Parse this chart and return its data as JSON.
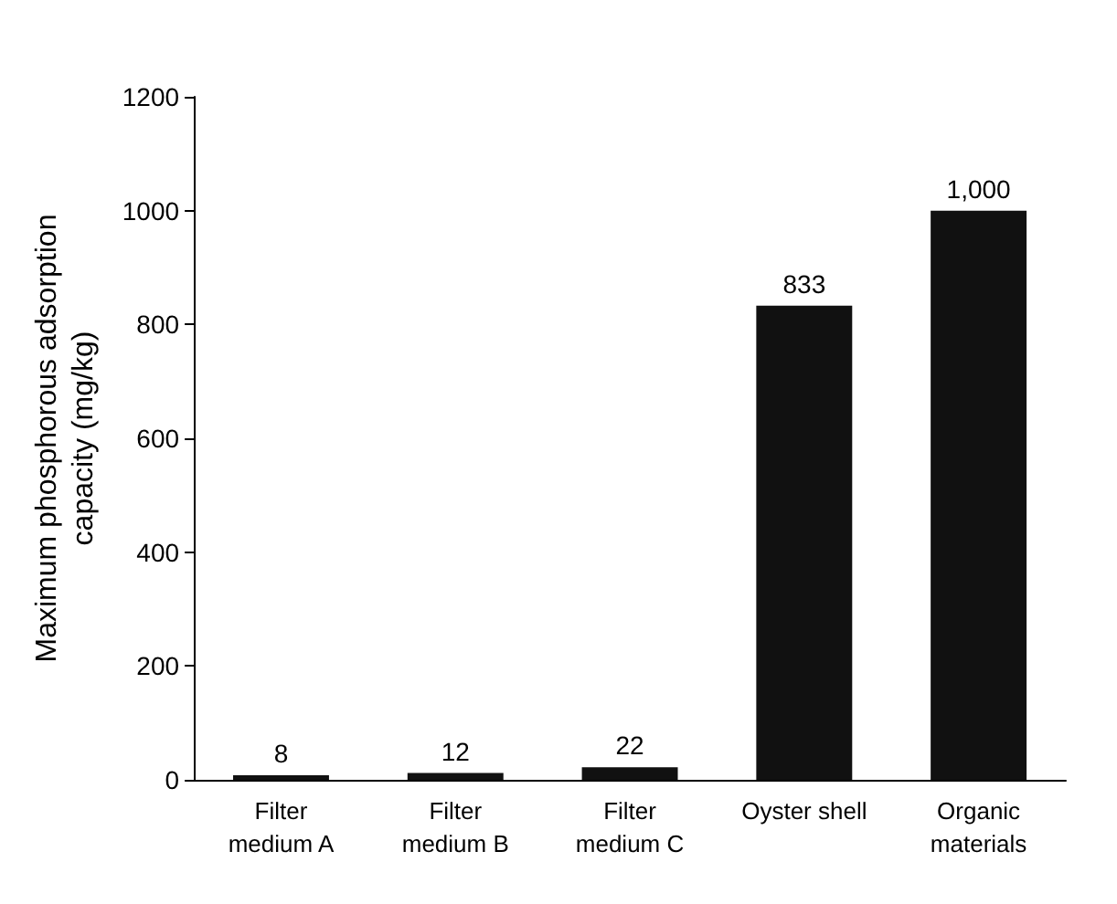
{
  "chart_data": {
    "type": "bar",
    "ylabel": "Maximum phosphorous adsorption\ncapacity (mg/kg)",
    "categories": [
      "Filter\nmedium A",
      "Filter\nmedium B",
      "Filter\nmedium C",
      "Oyster shell",
      "Organic\nmaterials"
    ],
    "values": [
      8,
      12,
      22,
      833,
      1000
    ],
    "value_labels": [
      "8",
      "12",
      "22",
      "833",
      "1,000"
    ],
    "color": "#111111",
    "ylim": [
      0,
      1200
    ],
    "yticks": [
      0,
      200,
      400,
      600,
      800,
      1000,
      1200
    ],
    "grid": false
  }
}
